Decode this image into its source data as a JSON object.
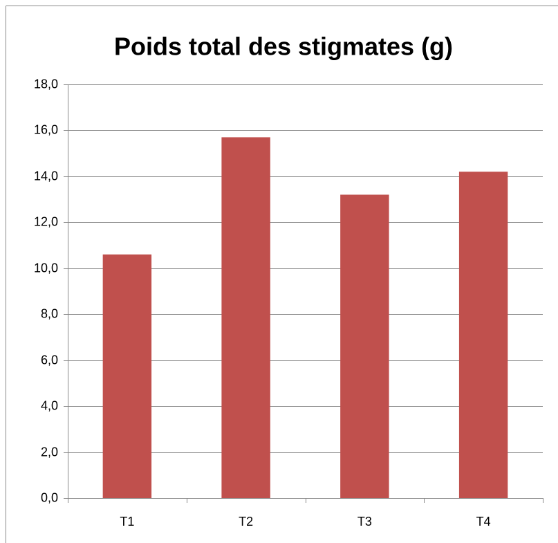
{
  "chart_data": {
    "type": "bar",
    "title": "Poids total des stigmates (g)",
    "categories": [
      "T1",
      "T2",
      "T3",
      "T4"
    ],
    "values": [
      10.6,
      15.7,
      13.2,
      14.2
    ],
    "color": "#c0504d",
    "ylim": [
      0,
      18
    ],
    "yticks": [
      {
        "value": 0,
        "label": "0,0"
      },
      {
        "value": 2,
        "label": "2,0"
      },
      {
        "value": 4,
        "label": "4,0"
      },
      {
        "value": 6,
        "label": "6,0"
      },
      {
        "value": 8,
        "label": "8,0"
      },
      {
        "value": 10,
        "label": "10,0"
      },
      {
        "value": 12,
        "label": "12,0"
      },
      {
        "value": 14,
        "label": "14,0"
      },
      {
        "value": 16,
        "label": "16,0"
      },
      {
        "value": 18,
        "label": "18,0"
      }
    ],
    "grid": true
  }
}
